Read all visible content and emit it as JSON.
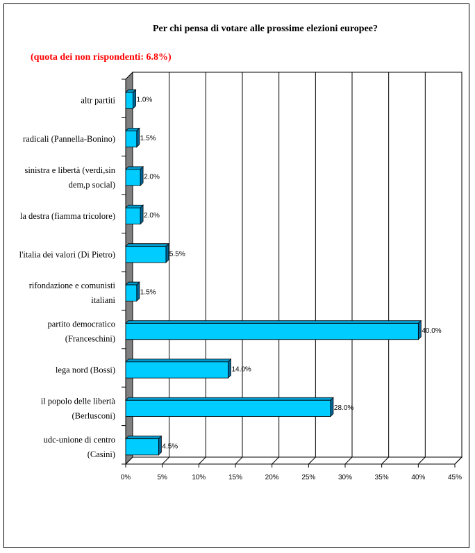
{
  "chart_data": {
    "type": "bar",
    "orientation": "horizontal",
    "title": "Per chi pensa di votare alle prossime elezioni europee?",
    "subtitle": "(quota dei non rispondenti: 6.8%)",
    "categories": [
      "altr partiti",
      "radicali (Pannella-Bonino)",
      "sinistra e libertà (verdi,sin dem,p social)",
      "la destra (fiamma tricolore)",
      "l'italia dei valori (Di Pietro)",
      "rifondazione e comunisti italiani",
      "partito democratico (Franceschini)",
      "lega nord (Bossi)",
      "il popolo delle libertà (Berlusconi)",
      "udc-unione di centro (Casini)"
    ],
    "category_lines": [
      [
        "altr partiti"
      ],
      [
        "radicali (Pannella-Bonino)"
      ],
      [
        "sinistra e libertà (verdi,sin",
        "dem,p social)"
      ],
      [
        "la destra (fiamma tricolore)"
      ],
      [
        "l'italia dei valori (Di Pietro)"
      ],
      [
        "rifondazione e comunisti",
        "italiani"
      ],
      [
        "partito democratico",
        "(Franceschini)"
      ],
      [
        "lega nord (Bossi)"
      ],
      [
        "il popolo delle libertà",
        "(Berlusconi)"
      ],
      [
        "udc-unione di centro",
        "(Casini)"
      ]
    ],
    "values": [
      1.0,
      1.5,
      2.0,
      2.0,
      5.5,
      1.5,
      40.0,
      14.0,
      28.0,
      4.5
    ],
    "value_labels": [
      "1.0%",
      "1.5%",
      "2.0%",
      "2.0%",
      "5.5%",
      "1.5%",
      "40.0%",
      "14.0%",
      "28.0%",
      "4.5%"
    ],
    "xlim": [
      0,
      45
    ],
    "xticks": [
      0,
      5,
      10,
      15,
      20,
      25,
      30,
      35,
      40,
      45
    ],
    "xtick_labels": [
      "0%",
      "5%",
      "10%",
      "15%",
      "20%",
      "25%",
      "30%",
      "35%",
      "40%",
      "45%"
    ],
    "grid": true,
    "legend": false,
    "colors": {
      "bar_front": "#00ccff",
      "bar_top": "#0099cc",
      "bar_side": "#006699",
      "wall": "#808080",
      "subtitle": "#ff0000"
    }
  }
}
